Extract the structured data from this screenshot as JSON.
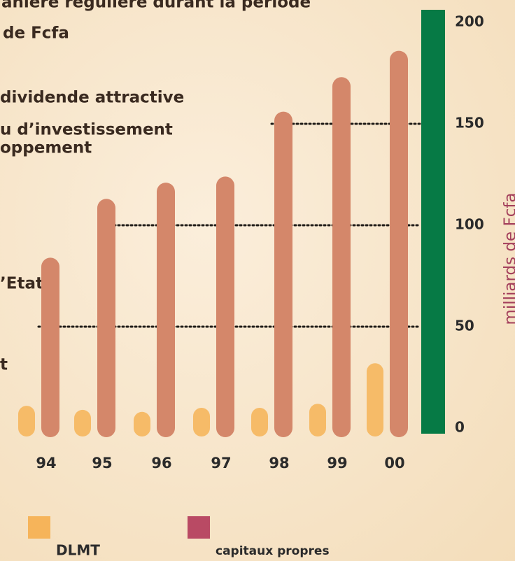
{
  "text_fragments": [
    "anière régulière durant la période",
    "de Fcfa",
    "dividende attractive",
    "u d’investissement",
    "oppement",
    "’Etat",
    "t"
  ],
  "chart_data": {
    "type": "bar",
    "categories": [
      "94",
      "95",
      "96",
      "97",
      "98",
      "99",
      "00"
    ],
    "series": [
      {
        "name": "DLMT",
        "color": "#f6bb68",
        "legend_color": "#f6b45a",
        "values": [
          11,
          9,
          8,
          10,
          10,
          12,
          32
        ]
      },
      {
        "name": "capitaux propres",
        "color": "#d4876a",
        "legend_color": "#b94a64",
        "values": [
          84,
          113,
          121,
          124,
          156,
          173,
          186
        ]
      }
    ],
    "ylabel": "milliards de Fcfa",
    "ylim": [
      0,
      200
    ],
    "yticks": [
      0,
      50,
      100,
      150,
      200
    ],
    "grid": true,
    "axis_color": "#067a45"
  }
}
